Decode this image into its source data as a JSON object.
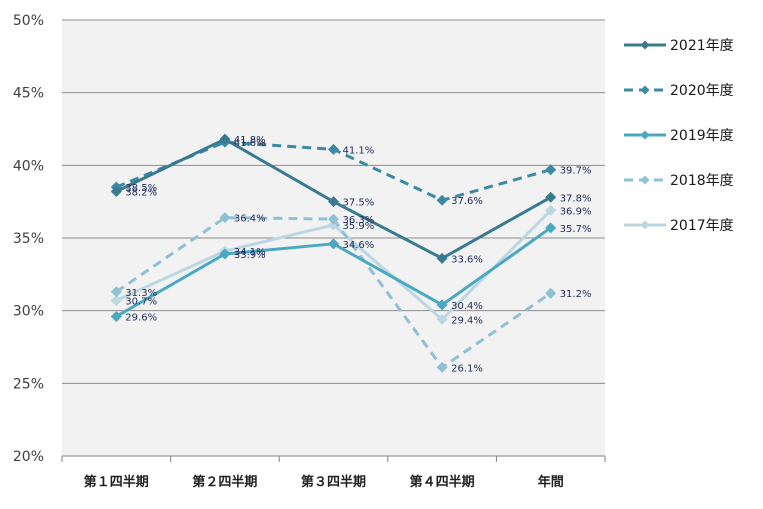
{
  "chart_data": {
    "type": "line",
    "title": "",
    "xlabel": "",
    "ylabel": "",
    "categories": [
      "第１四半期",
      "第２四半期",
      "第３四半期",
      "第４四半期",
      "年間"
    ],
    "ylim": [
      20,
      50
    ],
    "yticks": [
      "20%",
      "25%",
      "30%",
      "35%",
      "40%",
      "45%",
      "50%"
    ],
    "grid": true,
    "legend_position": "right",
    "series": [
      {
        "name": "2021年度",
        "values": [
          38.2,
          41.8,
          37.5,
          33.6,
          37.8
        ],
        "labels": [
          "38.2%",
          "41.8%",
          "37.5%",
          "33.6%",
          "37.8%"
        ],
        "color": "#3a7a8f",
        "dashed": false,
        "label_side": "right"
      },
      {
        "name": "2020年度",
        "values": [
          38.5,
          41.6,
          41.1,
          37.6,
          39.7
        ],
        "labels": [
          "38.5%",
          "41.6%",
          "41.1%",
          "37.6%",
          "39.7%"
        ],
        "color": "#3a8aa6",
        "dashed": true,
        "label_side": "right"
      },
      {
        "name": "2019年度",
        "values": [
          29.6,
          33.9,
          34.6,
          30.4,
          35.7
        ],
        "labels": [
          "29.6%",
          "33.9%",
          "34.6%",
          "30.4%",
          "35.7%"
        ],
        "color": "#4aa8c0",
        "dashed": false,
        "label_side": "right"
      },
      {
        "name": "2018年度",
        "values": [
          31.3,
          36.4,
          36.3,
          26.1,
          31.2
        ],
        "labels": [
          "31.3%",
          "36.4%",
          "36.3%",
          "26.1%",
          "31.2%"
        ],
        "color": "#8fc1d4",
        "dashed": true,
        "label_side": "right"
      },
      {
        "name": "2017年度",
        "values": [
          30.7,
          34.1,
          35.9,
          29.4,
          36.9
        ],
        "labels": [
          "30.7%",
          "34.1%",
          "35.9%",
          "29.4%",
          "36.9%"
        ],
        "color": "#bcd7e2",
        "dashed": false,
        "label_side": "right"
      }
    ]
  }
}
